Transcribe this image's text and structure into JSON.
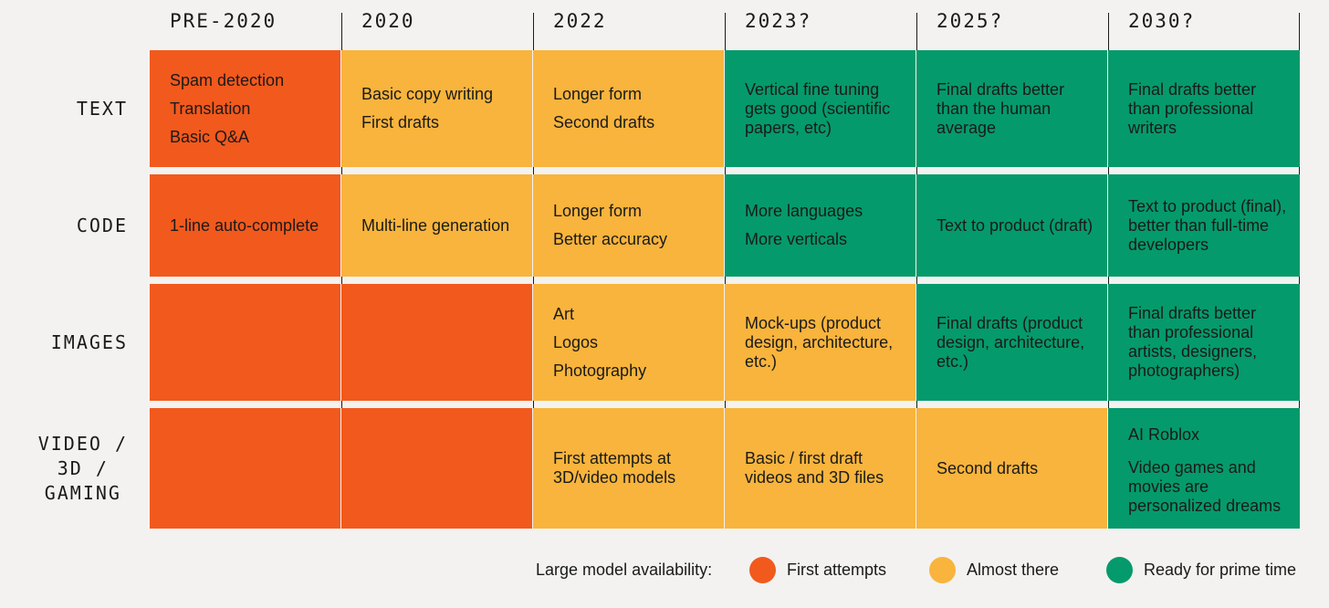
{
  "columns": [
    "PRE-2020",
    "2020",
    "2022",
    "2023?",
    "2025?",
    "2030?"
  ],
  "rows": [
    {
      "label": [
        "TEXT"
      ],
      "cells": [
        {
          "color": "orange",
          "lines": [
            "Spam detection",
            "Translation",
            "Basic Q&A"
          ],
          "multi": false
        },
        {
          "color": "yellow",
          "lines": [
            "Basic copy writing",
            "First drafts"
          ],
          "multi": false
        },
        {
          "color": "yellow",
          "lines": [
            "Longer form",
            "Second drafts"
          ],
          "multi": false
        },
        {
          "color": "green",
          "lines": [
            "Vertical fine tuning",
            "gets good (scientific",
            "papers, etc)"
          ],
          "multi": true
        },
        {
          "color": "green",
          "lines": [
            "Final drafts better",
            "than the human",
            "average"
          ],
          "multi": true
        },
        {
          "color": "green",
          "lines": [
            "Final drafts better",
            "than professional",
            "writers"
          ],
          "multi": true
        }
      ]
    },
    {
      "label": [
        "CODE"
      ],
      "cells": [
        {
          "color": "orange",
          "lines": [
            "1-line auto-complete"
          ],
          "multi": false
        },
        {
          "color": "yellow",
          "lines": [
            "Multi-line generation"
          ],
          "multi": false
        },
        {
          "color": "yellow",
          "lines": [
            "Longer form",
            "Better accuracy"
          ],
          "multi": false
        },
        {
          "color": "green",
          "lines": [
            "More languages",
            "More verticals"
          ],
          "multi": false
        },
        {
          "color": "green",
          "lines": [
            "Text to product (draft)"
          ],
          "multi": false
        },
        {
          "color": "green",
          "lines": [
            "Text to product (final),",
            "better than full-time",
            "developers"
          ],
          "multi": true
        }
      ]
    },
    {
      "label": [
        "IMAGES"
      ],
      "cells": [
        {
          "color": "orange",
          "lines": [],
          "multi": false
        },
        {
          "color": "orange",
          "lines": [],
          "multi": false
        },
        {
          "color": "yellow",
          "lines": [
            "Art",
            "Logos",
            "Photography"
          ],
          "multi": false
        },
        {
          "color": "yellow",
          "lines": [
            "Mock-ups (product",
            "design, architecture,",
            "etc.)"
          ],
          "multi": true
        },
        {
          "color": "green",
          "lines": [
            "Final drafts (product",
            "design, architecture,",
            "etc.)"
          ],
          "multi": true
        },
        {
          "color": "green",
          "lines": [
            "Final drafts better",
            "than professional",
            "artists, designers,",
            "photographers)"
          ],
          "multi": true
        }
      ]
    },
    {
      "label": [
        "VIDEO /",
        "3D /",
        "GAMING"
      ],
      "cells": [
        {
          "color": "orange",
          "lines": [],
          "multi": false
        },
        {
          "color": "orange",
          "lines": [],
          "multi": false
        },
        {
          "color": "yellow",
          "lines": [
            "First attempts at",
            "3D/video models"
          ],
          "multi": true
        },
        {
          "color": "yellow",
          "lines": [
            "Basic / first draft",
            "videos and 3D files"
          ],
          "multi": true
        },
        {
          "color": "yellow",
          "lines": [
            "Second drafts"
          ],
          "multi": false
        },
        {
          "color": "green",
          "lines": [
            "AI Roblox",
            "Video games and",
            "movies are",
            "personalized dreams"
          ],
          "multi": "mixed"
        }
      ]
    }
  ],
  "legend": {
    "title": "Large model availability:",
    "items": [
      {
        "label": "First attempts",
        "color": "#f2591d"
      },
      {
        "label": "Almost there",
        "color": "#f8b43c"
      },
      {
        "label": "Ready for prime time",
        "color": "#059a6b"
      }
    ]
  },
  "colors": {
    "orange": "#f2591d",
    "yellow": "#f8b43c",
    "green": "#059a6b",
    "background": "#f3f2f0"
  }
}
